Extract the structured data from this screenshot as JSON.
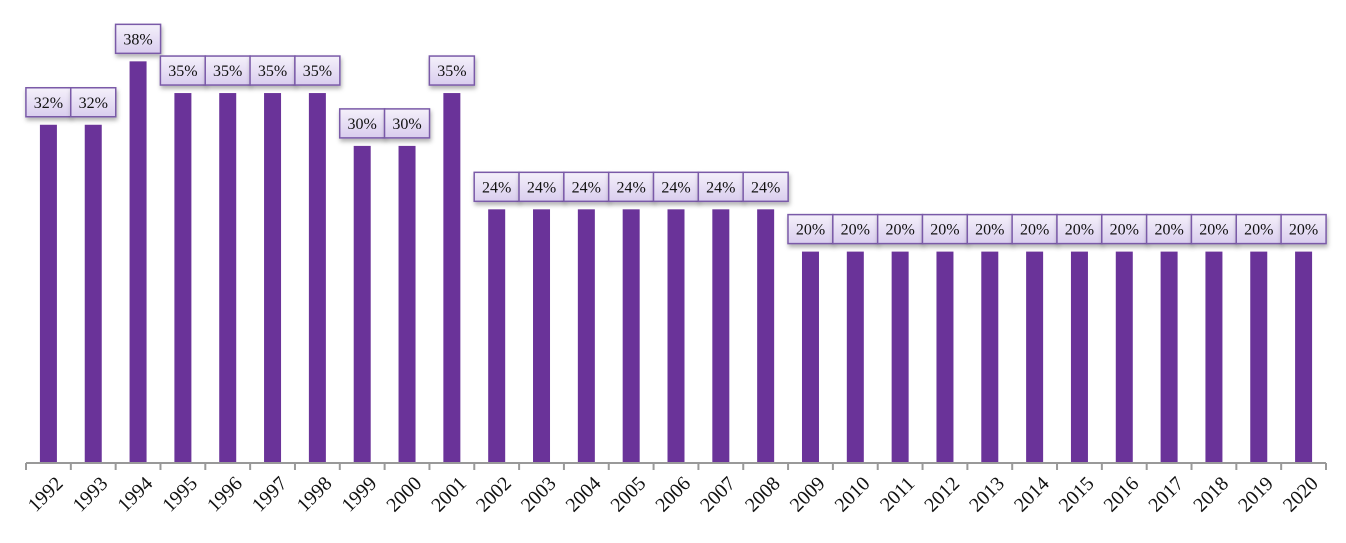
{
  "chart_data": {
    "type": "bar",
    "title": "",
    "xlabel": "",
    "ylabel": "",
    "categories": [
      "1992",
      "1993",
      "1994",
      "1995",
      "1996",
      "1997",
      "1998",
      "1999",
      "2000",
      "2001",
      "2002",
      "2003",
      "2004",
      "2005",
      "2006",
      "2007",
      "2008",
      "2009",
      "2010",
      "2011",
      "2012",
      "2013",
      "2014",
      "2015",
      "2016",
      "2017",
      "2018",
      "2019",
      "2020"
    ],
    "values": [
      32,
      32,
      38,
      35,
      35,
      35,
      35,
      30,
      30,
      35,
      24,
      24,
      24,
      24,
      24,
      24,
      24,
      20,
      20,
      20,
      20,
      20,
      20,
      20,
      20,
      20,
      20,
      20,
      20
    ],
    "value_suffix": "%",
    "ylim": [
      0,
      40
    ],
    "grid": false,
    "colors": {
      "bar": "#6a3399",
      "axis": "#999999",
      "label_border": "#7a5aa8",
      "label_fill": "#e4dcf2"
    }
  }
}
